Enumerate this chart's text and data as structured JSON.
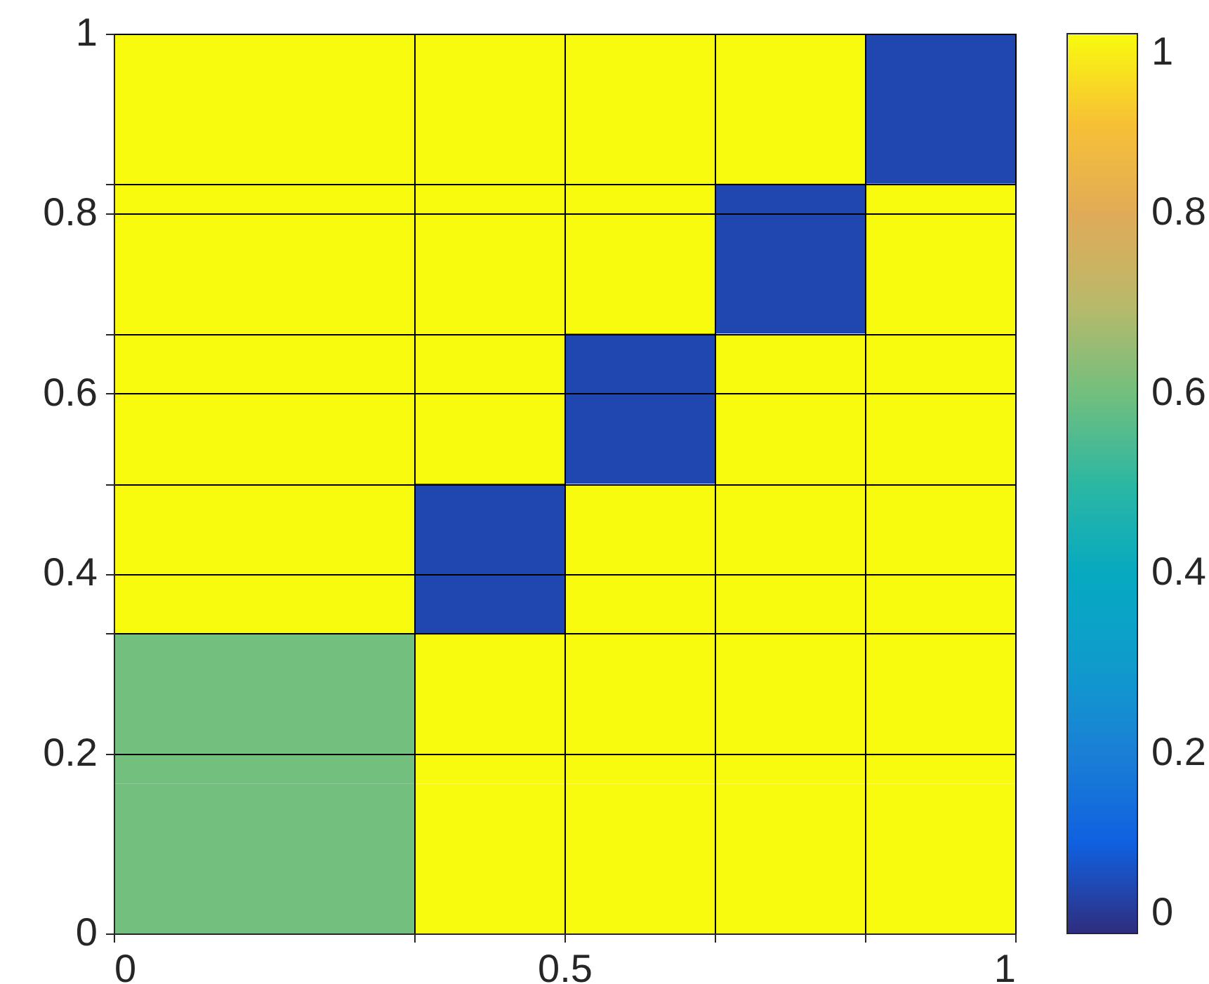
{
  "chart_data": {
    "type": "heatmap",
    "cells": [
      [
        1,
        1,
        1,
        1,
        1,
        0.05
      ],
      [
        1,
        1,
        1,
        1,
        0.05,
        1
      ],
      [
        1,
        1,
        1,
        0.05,
        1,
        1
      ],
      [
        1,
        1,
        0.05,
        1,
        1,
        1
      ],
      [
        0.6,
        0.6,
        1,
        1,
        1,
        1
      ],
      [
        0.6,
        0.6,
        1,
        1,
        1,
        1
      ]
    ],
    "colors": [
      "#2f2d7e",
      "#1060e0",
      "#1a7fd6",
      "#0f9ccc",
      "#06a9c1",
      "#2cb7a2",
      "#72bf7e",
      "#b9b96a",
      "#e0ab58",
      "#f7c035",
      "#f9fb0e"
    ],
    "xlim": [
      0,
      1
    ],
    "xticks": [
      0,
      {
        "value": 0.3333,
        "label": null
      },
      0.5,
      {
        "value": 0.6667,
        "label": null
      },
      {
        "value": 0.8333,
        "label": null
      },
      1
    ],
    "ylim": [
      0,
      1
    ],
    "yticks": [
      0,
      0.2,
      {
        "value": 0.3333,
        "label": null
      },
      0.4,
      {
        "value": 0.5,
        "label": null
      },
      0.6,
      {
        "value": 0.6667,
        "label": null
      },
      0.8,
      {
        "value": 0.8333,
        "label": null
      },
      1
    ],
    "grid": true,
    "clim": [
      0,
      1
    ],
    "cticks": [
      0,
      0.2,
      0.4,
      0.6,
      0.8,
      1
    ]
  }
}
